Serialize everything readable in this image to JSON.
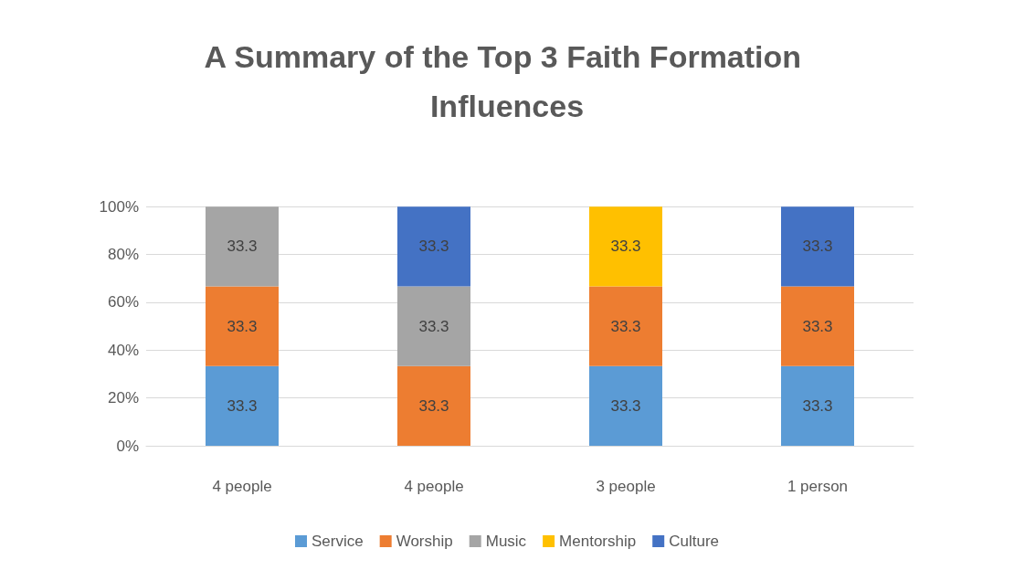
{
  "chart_data": {
    "type": "bar",
    "title": "A Summary of the Top 3 Faith Formation Influences",
    "categories": [
      "4 people",
      "4 people",
      "3 people",
      "1 person"
    ],
    "stacked": true,
    "data_labels": true,
    "grid": "y",
    "legend": "bottom",
    "ylim": [
      0,
      100
    ],
    "yticks": [
      {
        "value": 0,
        "label": "0%"
      },
      {
        "value": 20,
        "label": "20%"
      },
      {
        "value": 40,
        "label": "40%"
      },
      {
        "value": 60,
        "label": "60%"
      },
      {
        "value": 80,
        "label": "80%"
      },
      {
        "value": 100,
        "label": "100%"
      }
    ],
    "series": [
      {
        "name": "Service",
        "color": "#5b9bd5",
        "values": [
          33.3,
          null,
          33.3,
          33.3
        ]
      },
      {
        "name": "Worship",
        "color": "#ed7d31",
        "values": [
          33.3,
          33.3,
          33.3,
          33.3
        ]
      },
      {
        "name": "Music",
        "color": "#a5a5a5",
        "values": [
          33.3,
          33.3,
          null,
          null
        ]
      },
      {
        "name": "Mentorship",
        "color": "#ffc000",
        "values": [
          null,
          null,
          33.3,
          null
        ]
      },
      {
        "name": "Culture",
        "color": "#4472c4",
        "values": [
          null,
          33.3,
          null,
          33.3
        ]
      }
    ]
  }
}
